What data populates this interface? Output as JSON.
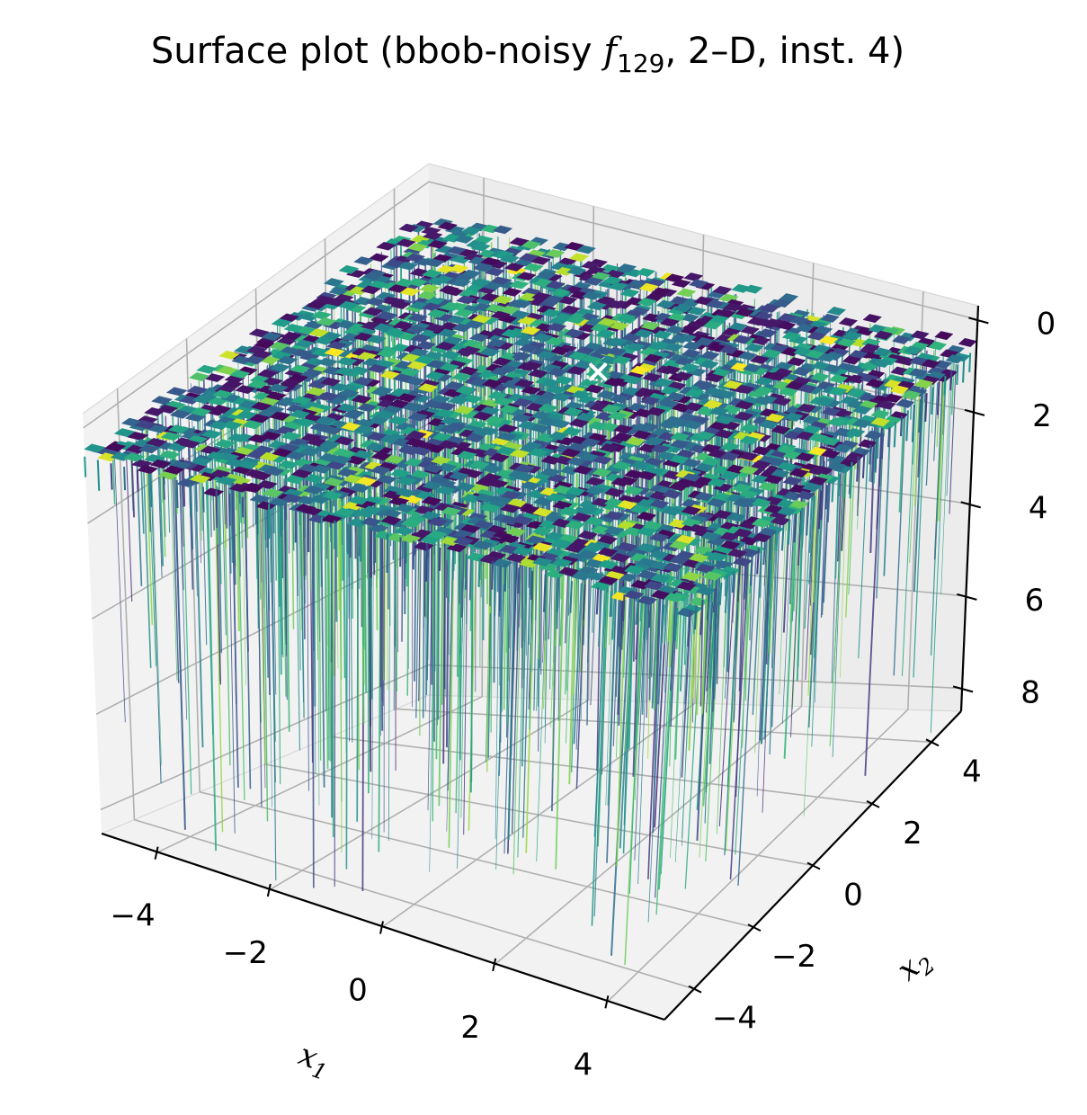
{
  "chart_data": {
    "type": "surface",
    "title_prefix": "Surface plot (bbob-noisy ",
    "title_fn": "f",
    "title_fn_sub": "129",
    "title_suffix": ", 2–D, inst. 4)",
    "xlabel": "x",
    "xlabel_sub": "1",
    "ylabel": "x",
    "ylabel_sub": "2",
    "xlim": [
      -5,
      5
    ],
    "ylim": [
      -5,
      5
    ],
    "zlim": [
      8.5,
      -0.3
    ],
    "z_axis_inverted": true,
    "xticks": [
      -4,
      -2,
      0,
      2,
      4
    ],
    "yticks": [
      -4,
      -2,
      0,
      2,
      4
    ],
    "zticks": [
      0,
      2,
      4,
      6,
      8
    ],
    "xtick_labels": [
      "−4",
      "−2",
      "0",
      "2",
      "4"
    ],
    "ytick_labels": [
      "−4",
      "−2",
      "0",
      "2",
      "4"
    ],
    "ztick_labels": [
      "0",
      "2",
      "4",
      "6",
      "8"
    ],
    "colormap": "viridis",
    "surface_typical_z": 0.6,
    "spike_depth_range": [
      1,
      8
    ],
    "optimum_marker": {
      "x": 0.1,
      "y": 1.5,
      "z": 0.6,
      "symbol": "x",
      "color": "#ffffff"
    },
    "grid": true
  }
}
